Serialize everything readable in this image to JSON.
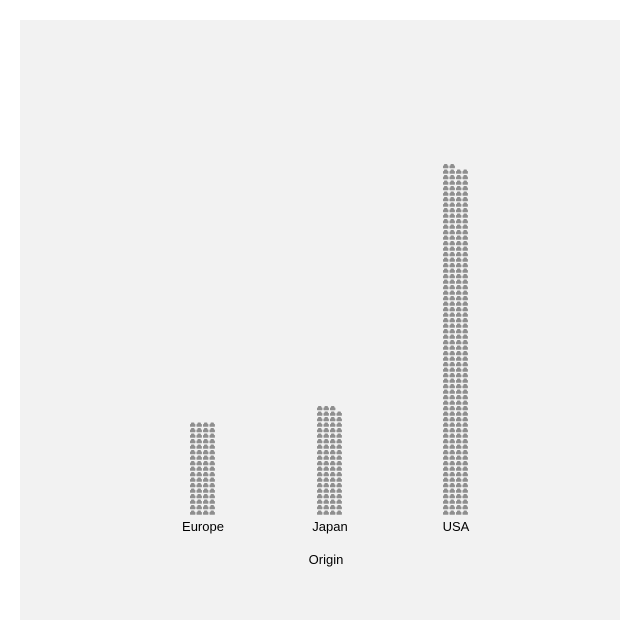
{
  "chart_data": {
    "type": "bar",
    "subtype": "isotype-pictogram",
    "icon": "car-icon",
    "icons_per_row": 4,
    "categories": [
      "Europe",
      "Japan",
      "USA"
    ],
    "values": [
      68,
      79,
      254
    ],
    "title": "",
    "xlabel": "Origin",
    "ylabel": "",
    "grid": false,
    "legend": "none",
    "colors": {
      "background": "#f2f2f2",
      "icon": "#8f8f8f",
      "text": "#000000"
    }
  }
}
